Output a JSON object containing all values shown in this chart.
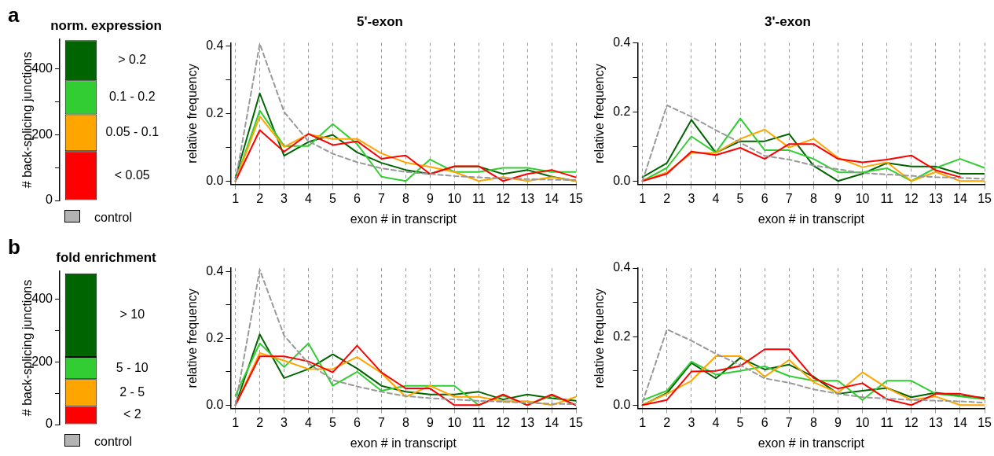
{
  "chart_data": [
    {
      "type": "bar",
      "title": "norm. expression",
      "ylabel": "# back-splicing junctions",
      "categories": [
        null
      ],
      "stacked": true,
      "ylim": [
        0,
        490
      ],
      "yticks": [
        0,
        {
          "value": 100,
          "label": null
        },
        200,
        {
          "value": 300,
          "label": null
        },
        400
      ],
      "annotations": [
        "a",
        "control"
      ],
      "series": [
        {
          "name": "< 0.05",
          "color": "#ff0000",
          "values": [
            150
          ]
        },
        {
          "name": "0.05 - 0.1",
          "color": "#ffa500",
          "values": [
            112
          ]
        },
        {
          "name": "0.1 - 0.2",
          "color": "#32cd32",
          "values": [
            103
          ]
        },
        {
          "name": "> 0.2",
          "color": "#006400",
          "values": [
            122
          ]
        }
      ]
    },
    {
      "type": "line",
      "title": "5'-exon",
      "xlabel": "exon # in transcript",
      "ylabel": "relative frequency",
      "x": [
        1,
        2,
        3,
        4,
        5,
        6,
        7,
        8,
        9,
        10,
        11,
        12,
        13,
        14,
        15
      ],
      "xlim": [
        0.8,
        15
      ],
      "xticks": [
        1,
        2,
        3,
        4,
        5,
        6,
        7,
        8,
        9,
        10,
        11,
        12,
        13,
        14,
        15
      ],
      "ylim": [
        -0.01,
        0.41
      ],
      "yticks": [
        {
          "value": 0,
          "label": "0.0"
        },
        {
          "value": 0.1,
          "label": null
        },
        0.2,
        {
          "value": 0.3,
          "label": null
        },
        0.4
      ],
      "grid": "x",
      "marker": "none",
      "series": [
        {
          "color": "#999999",
          "line_style": "dashed",
          "values": [
            0,
            0.407,
            0.205,
            0.118,
            0.081,
            0.056,
            0.038,
            0.027,
            0.021,
            0.015,
            0.011,
            0.008,
            0.006,
            0.004,
            0.003
          ]
        },
        {
          "color": "#ff0000",
          "values": [
            0,
            0.151,
            0.087,
            0.14,
            0.107,
            0.118,
            0.066,
            0.076,
            0.021,
            0.044,
            0.044,
            0,
            0.021,
            0.033,
            0.011
          ]
        },
        {
          "color": "#ffa500",
          "values": [
            0,
            0.192,
            0.101,
            0.139,
            0.125,
            0.125,
            0.082,
            0.055,
            0.042,
            0.027,
            0,
            0.012,
            0,
            0.012,
            0
          ]
        },
        {
          "color": "#32cd32",
          "values": [
            0,
            0.209,
            0.104,
            0.104,
            0.169,
            0.11,
            0.013,
            0,
            0.064,
            0.027,
            0.027,
            0.039,
            0.039,
            0.027,
            0.027
          ]
        },
        {
          "color": "#006400",
          "values": [
            0.01,
            0.26,
            0.075,
            0.116,
            0.137,
            0.085,
            0.054,
            0.033,
            0.021,
            0.043,
            0.043,
            0.021,
            0.033,
            0.013,
            0
          ]
        }
      ]
    },
    {
      "type": "line",
      "title": "3'-exon",
      "xlabel": "exon # in transcript",
      "ylabel": "relative frequency",
      "x": [
        1,
        2,
        3,
        4,
        5,
        6,
        7,
        8,
        9,
        10,
        11,
        12,
        13,
        14,
        15
      ],
      "xlim": [
        0.8,
        15
      ],
      "xticks": [
        1,
        2,
        3,
        4,
        5,
        6,
        7,
        8,
        9,
        10,
        11,
        12,
        13,
        14,
        15
      ],
      "ylim": [
        -0.01,
        0.4
      ],
      "yticks": [
        {
          "value": 0,
          "label": "0.0"
        },
        {
          "value": 0.1,
          "label": null
        },
        0.2,
        {
          "value": 0.3,
          "label": null
        },
        0.4
      ],
      "grid": "x",
      "marker": "none",
      "series": [
        {
          "color": "#999999",
          "line_style": "dashed",
          "values": [
            0,
            0.219,
            0.186,
            0.147,
            0.111,
            0.073,
            0.062,
            0.045,
            0.034,
            0.023,
            0.019,
            0.015,
            0.011,
            0.009,
            0.006
          ]
        },
        {
          "color": "#ff0000",
          "values": [
            0,
            0.021,
            0.085,
            0.075,
            0.096,
            0.064,
            0.107,
            0.107,
            0.064,
            0.054,
            0.062,
            0.074,
            0.031,
            0.011,
            null
          ]
        },
        {
          "color": "#ffa500",
          "values": [
            0,
            0.025,
            0.081,
            0.082,
            0.122,
            0.149,
            0.097,
            0.122,
            0.067,
            0.04,
            0.054,
            0,
            0.026,
            0,
            0
          ]
        },
        {
          "color": "#32cd32",
          "values": [
            0,
            0.038,
            0.129,
            0.082,
            0.181,
            0.089,
            0.089,
            0.064,
            0.025,
            0.025,
            0.037,
            0,
            0.038,
            0.064,
            0.038
          ]
        },
        {
          "color": "#006400",
          "values": [
            0.011,
            0.052,
            0.177,
            0.082,
            0.115,
            0.115,
            0.136,
            0.044,
            0,
            0.021,
            0.052,
            0.042,
            0.042,
            0.021,
            0.021
          ]
        }
      ]
    },
    {
      "type": "bar",
      "title": "fold enrichment",
      "ylabel": "# back-splicing junctions",
      "categories": [
        null
      ],
      "stacked": true,
      "ylim": [
        0,
        490
      ],
      "yticks": [
        0,
        {
          "value": 100,
          "label": null
        },
        200,
        {
          "value": 300,
          "label": null
        },
        400
      ],
      "annotations": [
        "b",
        "control"
      ],
      "series": [
        {
          "name": "< 2",
          "color": "#ff0000",
          "values": [
            59
          ]
        },
        {
          "name": "2 - 5",
          "color": "#ffa500",
          "values": [
            86
          ]
        },
        {
          "name": "5 - 10",
          "color": "#32cd32",
          "values": [
            71
          ]
        },
        {
          "name": "> 10",
          "color": "#006400",
          "values": [
            267
          ]
        }
      ]
    },
    {
      "type": "line",
      "xlabel": "exon # in transcript",
      "ylabel": "relative frequency",
      "x": [
        1,
        2,
        3,
        4,
        5,
        6,
        7,
        8,
        9,
        10,
        11,
        12,
        13,
        14,
        15
      ],
      "xlim": [
        0.8,
        15
      ],
      "xticks": [
        1,
        2,
        3,
        4,
        5,
        6,
        7,
        8,
        9,
        10,
        11,
        12,
        13,
        14,
        15
      ],
      "ylim": [
        -0.01,
        0.41
      ],
      "yticks": [
        {
          "value": 0,
          "label": "0.0"
        },
        {
          "value": 0.1,
          "label": null
        },
        0.2,
        {
          "value": 0.3,
          "label": null
        },
        0.4
      ],
      "grid": "x",
      "marker": "none",
      "series": [
        {
          "color": "#999999",
          "line_style": "dashed",
          "values": [
            0,
            0.405,
            0.208,
            0.125,
            0.075,
            0.056,
            0.04,
            0.027,
            0.021,
            0.017,
            0.013,
            0.01,
            0.007,
            0.004,
            0.003
          ]
        },
        {
          "color": "#ff0000",
          "values": [
            0,
            0.146,
            0.146,
            0.131,
            0.098,
            0.178,
            0.098,
            0.05,
            0.05,
            0,
            0,
            0.032,
            0,
            0.032,
            0
          ]
        },
        {
          "color": "#ffa500",
          "values": [
            0,
            0.156,
            0.133,
            0.108,
            0.108,
            0.144,
            0.096,
            0.025,
            0.058,
            0.025,
            0.025,
            0.012,
            0.012,
            0,
            0.025
          ]
        },
        {
          "color": "#32cd32",
          "values": [
            0.029,
            0.185,
            0.114,
            0.185,
            0.058,
            0.1,
            0.043,
            0.058,
            0.058,
            0.058,
            0,
            0.029,
            0,
            0.029,
            0
          ]
        },
        {
          "color": "#006400",
          "values": [
            0,
            0.212,
            0.081,
            0.108,
            0.152,
            0.11,
            0.058,
            0.04,
            0.032,
            0.032,
            0.04,
            0.017,
            0.032,
            0.021,
            0.013
          ]
        }
      ]
    },
    {
      "type": "line",
      "xlabel": "exon # in transcript",
      "ylabel": "relative frequency",
      "x": [
        1,
        2,
        3,
        4,
        5,
        6,
        7,
        8,
        9,
        10,
        11,
        12,
        13,
        14,
        15
      ],
      "xlim": [
        0.8,
        15
      ],
      "xticks": [
        1,
        2,
        3,
        4,
        5,
        6,
        7,
        8,
        9,
        10,
        11,
        12,
        13,
        14,
        15
      ],
      "ylim": [
        -0.01,
        0.4
      ],
      "yticks": [
        {
          "value": 0,
          "label": "0.0"
        },
        {
          "value": 0.1,
          "label": null
        },
        0.2,
        {
          "value": 0.3,
          "label": null
        },
        0.4
      ],
      "grid": "x",
      "marker": "none",
      "series": [
        {
          "color": "#999999",
          "line_style": "dashed",
          "values": [
            0.008,
            0.221,
            0.188,
            0.15,
            0.117,
            0.078,
            0.065,
            0.046,
            0.033,
            0.023,
            0.019,
            0.015,
            0.013,
            0.011,
            0.007
          ]
        },
        {
          "color": "#ff0000",
          "values": [
            0,
            0.015,
            0.098,
            0.1,
            0.114,
            0.163,
            0.163,
            0.079,
            0.048,
            0.064,
            0.017,
            0,
            0.033,
            0.033,
            0.019
          ]
        },
        {
          "color": "#ffa500",
          "values": [
            0,
            0.033,
            0.071,
            0.143,
            0.143,
            0.083,
            0.132,
            0.067,
            0.036,
            0.096,
            0.05,
            0.015,
            0.025,
            0,
            0
          ]
        },
        {
          "color": "#32cd32",
          "values": [
            0.014,
            0.042,
            0.127,
            0.089,
            0.1,
            0.113,
            0.085,
            0.071,
            0.071,
            0.015,
            0.071,
            0.071,
            0.033,
            0.025,
            0.017
          ]
        },
        {
          "color": "#006400",
          "values": [
            0,
            0.035,
            0.123,
            0.078,
            0.138,
            0.104,
            0.118,
            0.083,
            0.033,
            0.042,
            0.05,
            0.023,
            0.036,
            0.027,
            0.021
          ]
        }
      ]
    }
  ]
}
